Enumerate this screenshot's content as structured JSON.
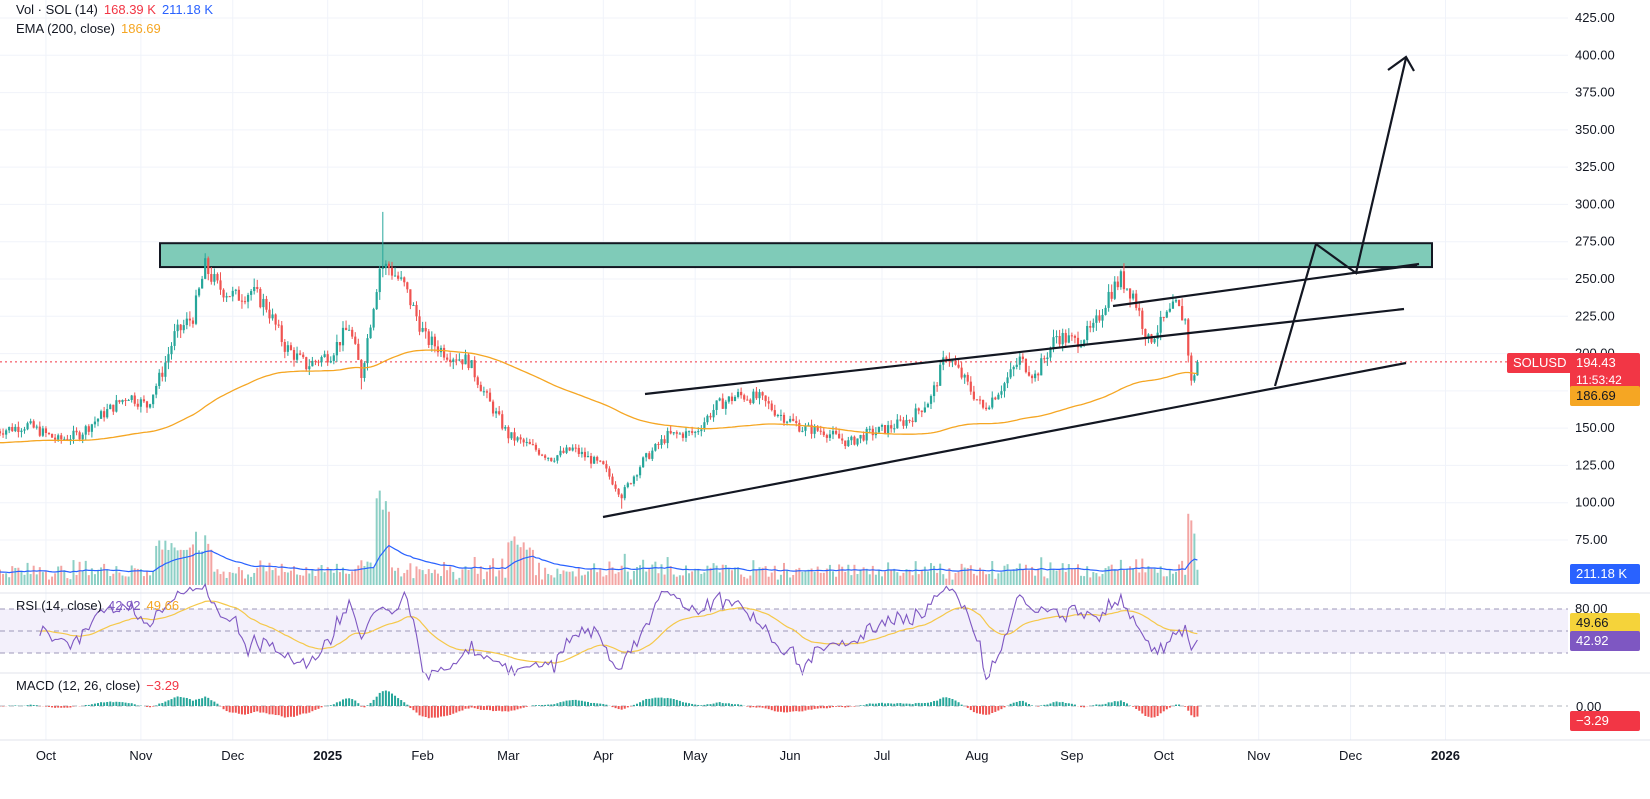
{
  "legend": {
    "vol": {
      "label": "Vol · SOL (14)",
      "value1": "168.39 K",
      "value2": "211.18 K"
    },
    "ema": {
      "label": "EMA (200, close)",
      "value": "186.69"
    },
    "rsi": {
      "label": "RSI (14, close)",
      "value1": "42.92",
      "value2": "49.66"
    },
    "macd": {
      "label": "MACD (12, 26, close)",
      "value": "−3.29"
    }
  },
  "badges": {
    "symbol": "SOLUSD",
    "price": "194.43",
    "countdown": "11:53:42",
    "ema": "186.69",
    "volume": "211.18 K",
    "rsi_ma": "49.66",
    "rsi": "42.92",
    "macd_zero": "0.00",
    "macd": "−3.29"
  },
  "colors": {
    "up": "#26a69a",
    "down": "#ef5350",
    "ema": "#f5a623",
    "volume_ma": "#2962ff",
    "rsi": "#7e57c2",
    "zone": "#7fcbb8",
    "price_badge": "#f23645",
    "ema_badge": "#f5a623"
  },
  "chart_data": [
    {
      "type": "candlestick",
      "symbol": "SOLUSD",
      "ylim": [
        75,
        425
      ],
      "y_ticks": [
        "425.00",
        "400.00",
        "375.00",
        "350.00",
        "325.00",
        "300.00",
        "275.00",
        "250.00",
        "225.00",
        "200.00",
        "175.00",
        "150.00",
        "125.00",
        "100.00",
        "75.00"
      ],
      "x_ticks": [
        "Oct",
        "Nov",
        "Dec",
        "2025",
        "Feb",
        "Mar",
        "Apr",
        "May",
        "Jun",
        "Jul",
        "Aug",
        "Sep",
        "Oct",
        "Nov",
        "Dec",
        "2026"
      ],
      "close_path": [
        [
          "2024-09-15",
          148
        ],
        [
          "2024-09-25",
          152
        ],
        [
          "2024-10-05",
          142
        ],
        [
          "2024-10-12",
          146
        ],
        [
          "2024-10-20",
          160
        ],
        [
          "2024-10-28",
          172
        ],
        [
          "2024-11-03",
          165
        ],
        [
          "2024-11-08",
          188
        ],
        [
          "2024-11-12",
          212
        ],
        [
          "2024-11-18",
          225
        ],
        [
          "2024-11-22",
          258
        ],
        [
          "2024-11-26",
          245
        ],
        [
          "2024-12-02",
          238
        ],
        [
          "2024-12-07",
          242
        ],
        [
          "2024-12-12",
          232
        ],
        [
          "2024-12-18",
          205
        ],
        [
          "2024-12-25",
          192
        ],
        [
          "2025-01-02",
          200
        ],
        [
          "2025-01-08",
          218
        ],
        [
          "2025-01-12",
          186
        ],
        [
          "2025-01-18",
          258
        ],
        [
          "2025-01-21",
          258
        ],
        [
          "2025-01-26",
          245
        ],
        [
          "2025-02-02",
          210
        ],
        [
          "2025-02-09",
          200
        ],
        [
          "2025-02-16",
          195
        ],
        [
          "2025-02-22",
          170
        ],
        [
          "2025-03-01",
          145
        ],
        [
          "2025-03-08",
          138
        ],
        [
          "2025-03-15",
          130
        ],
        [
          "2025-03-22",
          136
        ],
        [
          "2025-04-01",
          124
        ],
        [
          "2025-04-07",
          105
        ],
        [
          "2025-04-14",
          128
        ],
        [
          "2025-04-22",
          145
        ],
        [
          "2025-05-01",
          147
        ],
        [
          "2025-05-08",
          165
        ],
        [
          "2025-05-15",
          172
        ],
        [
          "2025-05-22",
          170
        ],
        [
          "2025-05-28",
          160
        ],
        [
          "2025-06-05",
          150
        ],
        [
          "2025-06-12",
          148
        ],
        [
          "2025-06-20",
          140
        ],
        [
          "2025-06-26",
          146
        ],
        [
          "2025-07-03",
          150
        ],
        [
          "2025-07-10",
          156
        ],
        [
          "2025-07-17",
          170
        ],
        [
          "2025-07-22",
          200
        ],
        [
          "2025-07-28",
          182
        ],
        [
          "2025-08-03",
          163
        ],
        [
          "2025-08-10",
          180
        ],
        [
          "2025-08-15",
          196
        ],
        [
          "2025-08-20",
          185
        ],
        [
          "2025-08-27",
          212
        ],
        [
          "2025-09-02",
          208
        ],
        [
          "2025-09-08",
          216
        ],
        [
          "2025-09-13",
          240
        ],
        [
          "2025-09-17",
          250
        ],
        [
          "2025-09-21",
          240
        ],
        [
          "2025-09-26",
          208
        ],
        [
          "2025-10-01",
          222
        ],
        [
          "2025-10-05",
          232
        ],
        [
          "2025-10-08",
          222
        ],
        [
          "2025-10-10",
          180
        ],
        [
          "2025-10-12",
          194.43
        ]
      ],
      "ema200": {
        "name": "EMA (200, close)",
        "last": 186.69
      },
      "annotations": {
        "zone": [
          258,
          274
        ],
        "channel": "rising",
        "arrow_target": 400
      },
      "last_price": 194.43,
      "high": 295,
      "low": 96
    },
    {
      "type": "bar",
      "name": "Volume",
      "last": "168.39 K",
      "ma_last": "211.18 K"
    },
    {
      "type": "line",
      "name": "RSI (14, close)",
      "y_ticks": [
        "80.00"
      ],
      "last_rsi": 42.92,
      "last_ma": 49.66
    },
    {
      "type": "bar",
      "name": "MACD (12, 26, close)",
      "y_ticks": [
        "0.00"
      ],
      "last": -3.29
    }
  ]
}
